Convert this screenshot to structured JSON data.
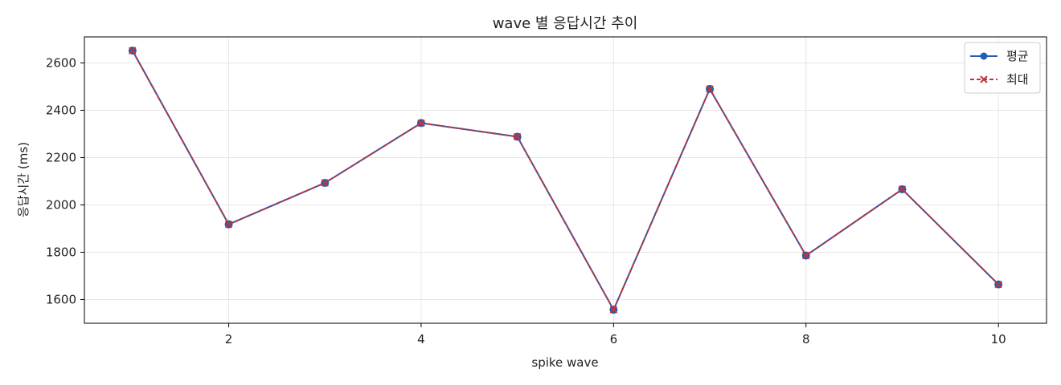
{
  "chart_data": {
    "type": "line",
    "title": "wave 별 응답시간 추이",
    "xlabel": "spike wave",
    "ylabel": "응답시간 (ms)",
    "x": [
      1,
      2,
      3,
      4,
      5,
      6,
      7,
      8,
      9,
      10
    ],
    "xlim": [
      0.5,
      10.5
    ],
    "ylim": [
      1500,
      2710
    ],
    "xticks": [
      2,
      4,
      6,
      8,
      10
    ],
    "yticks": [
      1600,
      1800,
      2000,
      2200,
      2400,
      2600
    ],
    "grid": true,
    "legend_position": "top-right",
    "series": [
      {
        "name": "평균",
        "values": [
          2652,
          1918,
          2093,
          2346,
          2288,
          1557,
          2490,
          1786,
          2066,
          1664
        ],
        "color": "#1f5fb4",
        "line_style": "solid",
        "marker": "circle"
      },
      {
        "name": "최대",
        "values": [
          2652,
          1918,
          2093,
          2346,
          2288,
          1557,
          2490,
          1786,
          2066,
          1664
        ],
        "color": "#c0343c",
        "line_style": "dashed",
        "marker": "x"
      }
    ]
  }
}
